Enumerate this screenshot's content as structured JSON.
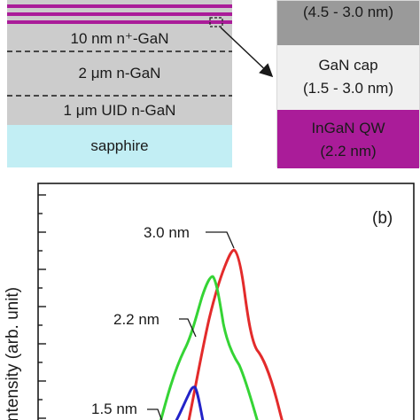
{
  "structure": {
    "layers": [
      {
        "label": "10 nm n⁺-GaN",
        "color": "#cccccc"
      },
      {
        "label": "2 μm n-GaN",
        "color": "#cccccc"
      },
      {
        "label": "1 μm UID n-GaN",
        "color": "#cccccc"
      },
      {
        "label": "sapphire",
        "color": "#c2eef4"
      }
    ],
    "qw_color": "#aa1c99",
    "zoom": {
      "top": {
        "line": "(4.5 - 3.0 nm)",
        "color": "#9a9a9a"
      },
      "cap": {
        "line1": "GaN cap",
        "line2": "(1.5 - 3.0 nm)",
        "color": "#f0f0f0"
      },
      "qw": {
        "line1": "InGaN QW",
        "line2": "(2.2 nm)",
        "color": "#aa1c99"
      }
    }
  },
  "chart_data": {
    "type": "line",
    "panel_label": "(b)",
    "ylabel": "ntensity (arb. unit)",
    "series": [
      {
        "name": "3.0 nm",
        "color": "#e32b2b"
      },
      {
        "name": "2.2 nm",
        "color": "#35d435"
      },
      {
        "name": "1.5 nm",
        "color": "#2323c8"
      }
    ]
  }
}
